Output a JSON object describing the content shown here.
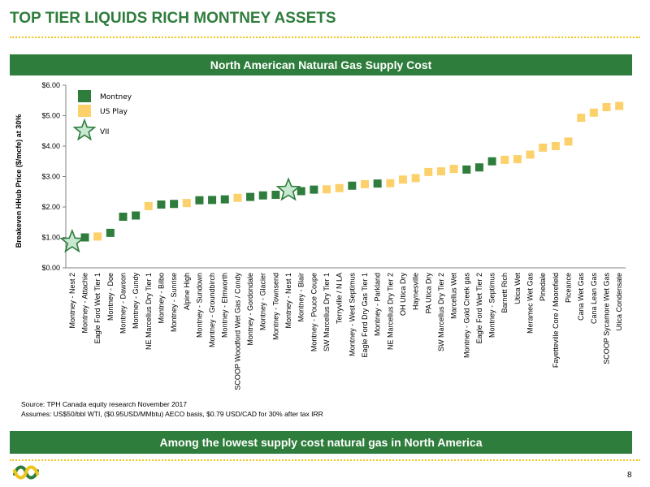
{
  "page": {
    "title": "TOP TIER LIQUIDS RICH MONTNEY ASSETS",
    "banner_top": "North American Natural Gas Supply Cost",
    "banner_bottom": "Among the lowest supply cost natural gas in North America",
    "source_line1": "Source: TPH Canada equity research November 2017",
    "source_line2": "Assumes: US$50/bbl WTI, ($0.95USD/MMbtu) AECO basis, $0.79 USD/CAD for 30% after tax IRR",
    "page_number": "8"
  },
  "colors": {
    "green": "#2f7d3c",
    "yellow": "#fcd16b",
    "star_fill": "#c8e8d2",
    "star_stroke": "#2f7d3c",
    "rule": "#f0c419"
  },
  "chart_data": {
    "type": "scatter",
    "ylabel": "Breakeven HHub Price ($/mcfe) at 30%",
    "ylim": [
      0,
      6
    ],
    "yticks": [
      "$0.00",
      "$1.00",
      "$2.00",
      "$3.00",
      "$4.00",
      "$5.00",
      "$6.00"
    ],
    "grid": false,
    "legend_position": "top-left",
    "legend": [
      {
        "label": "Montney",
        "group": "Montney",
        "marker": "square"
      },
      {
        "label": "US Play",
        "group": "US Play",
        "marker": "square"
      },
      {
        "label": "VII",
        "group": "VII",
        "marker": "star"
      }
    ],
    "points": [
      {
        "name": "Montney - Nest 2",
        "value": 0.85,
        "group": "VII"
      },
      {
        "name": "Montney - Attachie",
        "value": 1.0,
        "group": "Montney"
      },
      {
        "name": "Eagle Ford Wet Tier 1",
        "value": 1.03,
        "group": "US Play"
      },
      {
        "name": "Montney - Doe",
        "value": 1.15,
        "group": "Montney"
      },
      {
        "name": "Montney - Dawson",
        "value": 1.68,
        "group": "Montney"
      },
      {
        "name": "Montney - Gundy",
        "value": 1.72,
        "group": "Montney"
      },
      {
        "name": "NE Marcellus Dry Tier 1",
        "value": 2.03,
        "group": "US Play"
      },
      {
        "name": "Montney - Bilbo",
        "value": 2.08,
        "group": "Montney"
      },
      {
        "name": "Montney - Sunrise",
        "value": 2.1,
        "group": "Montney"
      },
      {
        "name": "Alpine High",
        "value": 2.13,
        "group": "US Play"
      },
      {
        "name": "Montney - Sundown",
        "value": 2.22,
        "group": "Montney"
      },
      {
        "name": "Montney - Groundbirch",
        "value": 2.23,
        "group": "Montney"
      },
      {
        "name": "Montney - Elmworth",
        "value": 2.25,
        "group": "Montney"
      },
      {
        "name": "SCOOP Woodford Wet Gas / Condy",
        "value": 2.3,
        "group": "US Play"
      },
      {
        "name": "Montney - Gordondale",
        "value": 2.33,
        "group": "Montney"
      },
      {
        "name": "Montney - Glacier",
        "value": 2.38,
        "group": "Montney"
      },
      {
        "name": "Montney - Townsend",
        "value": 2.4,
        "group": "Montney"
      },
      {
        "name": "Montney - Nest 1",
        "value": 2.55,
        "group": "VII"
      },
      {
        "name": "Montney - Blair",
        "value": 2.52,
        "group": "Montney"
      },
      {
        "name": "Montney - Pouce Coupe",
        "value": 2.57,
        "group": "Montney"
      },
      {
        "name": "SW Marcellus Dry Tier 1",
        "value": 2.58,
        "group": "US Play"
      },
      {
        "name": "Terryville / N LA",
        "value": 2.62,
        "group": "US Play"
      },
      {
        "name": "Montney - West Septimus",
        "value": 2.7,
        "group": "Montney"
      },
      {
        "name": "Eagle Ford Dry Gas Tier 1",
        "value": 2.75,
        "group": "US Play"
      },
      {
        "name": "Montney - Parkland",
        "value": 2.77,
        "group": "Montney"
      },
      {
        "name": "NE Marcellus Dry Tier 2",
        "value": 2.78,
        "group": "US Play"
      },
      {
        "name": "OH Utica Dry",
        "value": 2.9,
        "group": "US Play"
      },
      {
        "name": "Haynesville",
        "value": 2.95,
        "group": "US Play"
      },
      {
        "name": "PA Utica Dry",
        "value": 3.15,
        "group": "US Play"
      },
      {
        "name": "SW Marcellus Dry Tier 2",
        "value": 3.17,
        "group": "US Play"
      },
      {
        "name": "Marcellus Wet",
        "value": 3.25,
        "group": "US Play"
      },
      {
        "name": "Montney - Gold Creek gas",
        "value": 3.23,
        "group": "Montney"
      },
      {
        "name": "Eagle Ford Wet Tier 2",
        "value": 3.3,
        "group": "Montney"
      },
      {
        "name": "Montney - Septimus",
        "value": 3.5,
        "group": "Montney"
      },
      {
        "name": "Barnett Rich",
        "value": 3.55,
        "group": "US Play"
      },
      {
        "name": "Utica Wet",
        "value": 3.57,
        "group": "US Play"
      },
      {
        "name": "Meramec Wet Gas",
        "value": 3.72,
        "group": "US Play"
      },
      {
        "name": "Pinedale",
        "value": 3.95,
        "group": "US Play"
      },
      {
        "name": "Fayetteville Core / Moorefield",
        "value": 4.0,
        "group": "US Play"
      },
      {
        "name": "Piceance",
        "value": 4.15,
        "group": "US Play"
      },
      {
        "name": "Cana Wet Gas",
        "value": 4.93,
        "group": "US Play"
      },
      {
        "name": "Cana Lean Gas",
        "value": 5.1,
        "group": "US Play"
      },
      {
        "name": "SCOOP Sycamore Wet Gas",
        "value": 5.28,
        "group": "US Play"
      },
      {
        "name": "Utica Condensate",
        "value": 5.32,
        "group": "US Play"
      }
    ]
  }
}
